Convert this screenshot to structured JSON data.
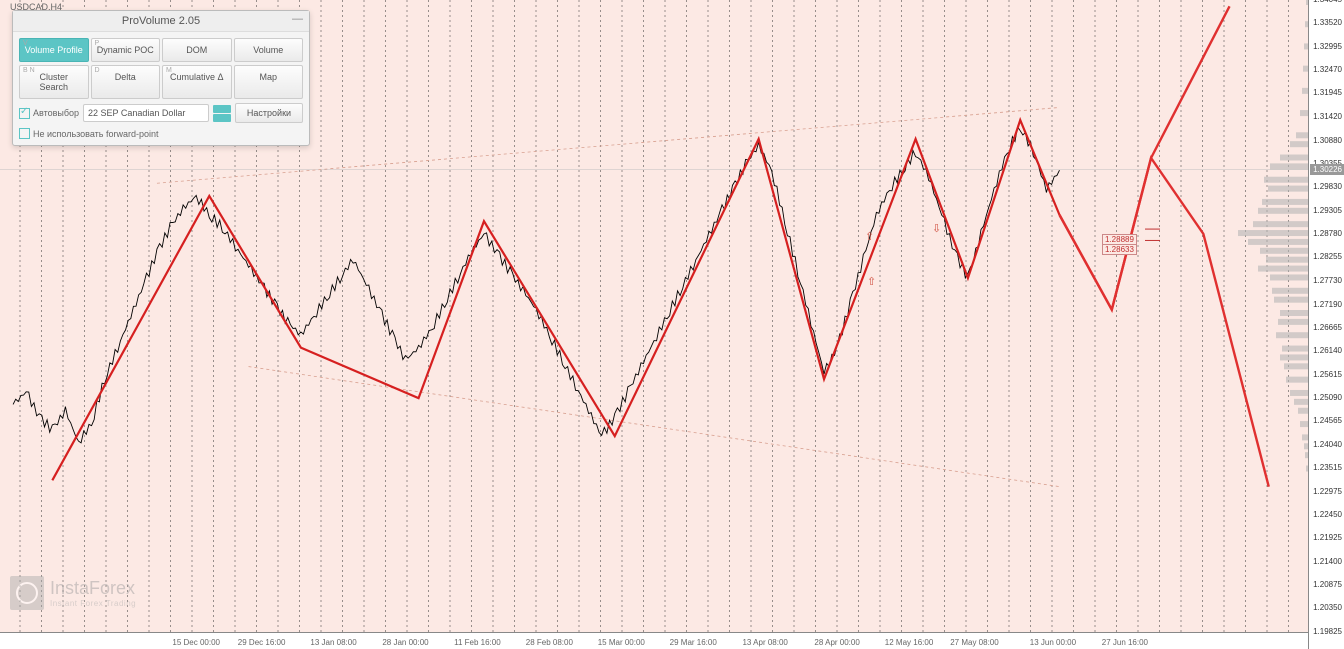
{
  "ticker": "USDCAD,H4",
  "panel": {
    "title": "ProVolume 2.05",
    "buttons_row1": [
      {
        "label": "Volume Profile",
        "hint": "V",
        "active": true
      },
      {
        "label": "Dynamic POC",
        "hint": "P",
        "active": false
      },
      {
        "label": "DOM",
        "hint": "",
        "active": false
      },
      {
        "label": "Volume",
        "hint": "",
        "active": false
      }
    ],
    "buttons_row2": [
      {
        "label": "Cluster Search",
        "hint": "B  N",
        "active": false
      },
      {
        "label": "Delta",
        "hint": "D",
        "active": false
      },
      {
        "label": "Cumulative Δ",
        "hint": "M",
        "active": false
      },
      {
        "label": "Map",
        "hint": "",
        "active": false
      }
    ],
    "autoselect": {
      "label": "Автовыбор",
      "checked": true
    },
    "instrument": "22 SEP Canadian Dollar",
    "settings_label": "Настройки",
    "forward_point": {
      "label": "Не использовать forward-point",
      "checked": false
    }
  },
  "price_axis": {
    "min": 1.1982,
    "max": 1.34045,
    "current": 1.30226,
    "ticks": [
      "1.34045",
      "1.33520",
      "1.32995",
      "1.32470",
      "1.31945",
      "1.31420",
      "1.30880",
      "1.30355",
      "1.29830",
      "1.29305",
      "1.28780",
      "1.28255",
      "1.27730",
      "1.27190",
      "1.26665",
      "1.26140",
      "1.25615",
      "1.25090",
      "1.24565",
      "1.24040",
      "1.23515",
      "1.22975",
      "1.22450",
      "1.21925",
      "1.21400",
      "1.20875",
      "1.20350",
      "1.19825"
    ]
  },
  "time_axis": {
    "labels": [
      "15 Dec 00:00",
      "29 Dec 16:00",
      "13 Jan 08:00",
      "28 Jan 00:00",
      "11 Feb 16:00",
      "28 Feb 08:00",
      "15 Mar 00:00",
      "29 Mar 16:00",
      "13 Apr 08:00",
      "28 Apr 00:00",
      "12 May 16:00",
      "27 May 08:00",
      "13 Jun 00:00",
      "27 Jun 16:00"
    ],
    "positions_pct": [
      15,
      20,
      25.5,
      31,
      36.5,
      42,
      47.5,
      53,
      58.5,
      64,
      69.5,
      74.5,
      80.5,
      86
    ]
  },
  "annotations": {
    "level1": "1.28889",
    "level2": "1.28633"
  },
  "watermark": {
    "main": "InstaForex",
    "sub": "Instant Forex Trading"
  },
  "chart": {
    "bg_color": "#fce9e4",
    "wave_color": "#d62020",
    "forecast_color_up": "#e03030",
    "forecast_color_down": "#e03030",
    "trend_color": "#d8a090",
    "volprofile_color": "#b5b5b5",
    "vol_profile": [
      [
        1.34,
        2
      ],
      [
        1.335,
        3
      ],
      [
        1.33,
        4
      ],
      [
        1.325,
        5
      ],
      [
        1.32,
        6
      ],
      [
        1.315,
        8
      ],
      [
        1.31,
        12
      ],
      [
        1.308,
        18
      ],
      [
        1.305,
        28
      ],
      [
        1.303,
        38
      ],
      [
        1.3,
        44
      ],
      [
        1.298,
        40
      ],
      [
        1.295,
        46
      ],
      [
        1.293,
        50
      ],
      [
        1.29,
        55
      ],
      [
        1.288,
        70
      ],
      [
        1.286,
        60
      ],
      [
        1.284,
        48
      ],
      [
        1.282,
        42
      ],
      [
        1.28,
        50
      ],
      [
        1.278,
        38
      ],
      [
        1.275,
        36
      ],
      [
        1.273,
        34
      ],
      [
        1.27,
        28
      ],
      [
        1.268,
        30
      ],
      [
        1.265,
        32
      ],
      [
        1.262,
        26
      ],
      [
        1.26,
        28
      ],
      [
        1.258,
        24
      ],
      [
        1.255,
        22
      ],
      [
        1.252,
        18
      ],
      [
        1.25,
        14
      ],
      [
        1.248,
        10
      ],
      [
        1.245,
        8
      ],
      [
        1.242,
        6
      ],
      [
        1.24,
        4
      ],
      [
        1.238,
        3
      ],
      [
        1.235,
        2
      ]
    ],
    "price_series_pct": [
      [
        1,
        64
      ],
      [
        2,
        62
      ],
      [
        3,
        66
      ],
      [
        4,
        68
      ],
      [
        5,
        65
      ],
      [
        6,
        70
      ],
      [
        7,
        67
      ],
      [
        8,
        60
      ],
      [
        9,
        55
      ],
      [
        10,
        50
      ],
      [
        11,
        45
      ],
      [
        12,
        40
      ],
      [
        13,
        36
      ],
      [
        14,
        33
      ],
      [
        15,
        31
      ],
      [
        16,
        34
      ],
      [
        17,
        36
      ],
      [
        18,
        39
      ],
      [
        19,
        42
      ],
      [
        20,
        45
      ],
      [
        21,
        48
      ],
      [
        22,
        51
      ],
      [
        23,
        53
      ],
      [
        24,
        50
      ],
      [
        25,
        47
      ],
      [
        26,
        44
      ],
      [
        27,
        41
      ],
      [
        28,
        45
      ],
      [
        29,
        49
      ],
      [
        30,
        53
      ],
      [
        31,
        57
      ],
      [
        32,
        55
      ],
      [
        33,
        52
      ],
      [
        34,
        48
      ],
      [
        35,
        44
      ],
      [
        36,
        40
      ],
      [
        37,
        37
      ],
      [
        38,
        40
      ],
      [
        39,
        43
      ],
      [
        40,
        46
      ],
      [
        41,
        49
      ],
      [
        42,
        53
      ],
      [
        43,
        57
      ],
      [
        44,
        61
      ],
      [
        45,
        65
      ],
      [
        46,
        69
      ],
      [
        47,
        66
      ],
      [
        48,
        62
      ],
      [
        49,
        58
      ],
      [
        50,
        54
      ],
      [
        51,
        50
      ],
      [
        52,
        46
      ],
      [
        53,
        42
      ],
      [
        54,
        38
      ],
      [
        55,
        34
      ],
      [
        56,
        30
      ],
      [
        57,
        26
      ],
      [
        58,
        23
      ],
      [
        59,
        27
      ],
      [
        60,
        35
      ],
      [
        61,
        43
      ],
      [
        62,
        51
      ],
      [
        63,
        59
      ],
      [
        64,
        55
      ],
      [
        65,
        48
      ],
      [
        66,
        41
      ],
      [
        67,
        34
      ],
      [
        68,
        30
      ],
      [
        69,
        27
      ],
      [
        70,
        24
      ],
      [
        71,
        28
      ],
      [
        72,
        34
      ],
      [
        73,
        40
      ],
      [
        74,
        44
      ],
      [
        75,
        37
      ],
      [
        76,
        30
      ],
      [
        77,
        24
      ],
      [
        78,
        20
      ],
      [
        79,
        24
      ],
      [
        80,
        30
      ],
      [
        81,
        27
      ]
    ],
    "wave_vertices_pct": [
      [
        4,
        76
      ],
      [
        16,
        31
      ],
      [
        23,
        55
      ],
      [
        32,
        63
      ],
      [
        37,
        35
      ],
      [
        47,
        69
      ],
      [
        58,
        22
      ],
      [
        63,
        60
      ],
      [
        70,
        22
      ],
      [
        74,
        44
      ],
      [
        78,
        19
      ],
      [
        81,
        34
      ]
    ],
    "forecast_up_pct": [
      [
        81,
        34
      ],
      [
        85,
        49
      ],
      [
        88,
        25
      ],
      [
        94,
        1
      ]
    ],
    "forecast_down_pct": [
      [
        81,
        34
      ],
      [
        85,
        49
      ],
      [
        88,
        25
      ],
      [
        92,
        37
      ],
      [
        97,
        77
      ]
    ],
    "trend_upper_pct": [
      [
        12,
        29
      ],
      [
        81,
        17
      ]
    ],
    "trend_lower_pct": [
      [
        19,
        58
      ],
      [
        81,
        77
      ]
    ]
  }
}
